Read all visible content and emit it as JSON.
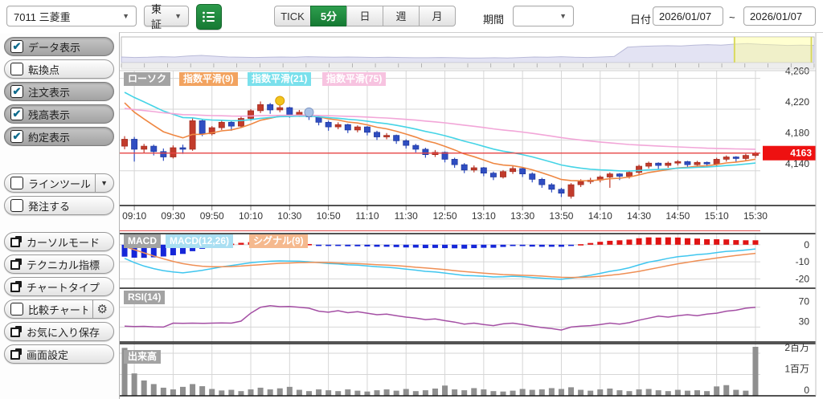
{
  "toolbar": {
    "stock_selector": "7011 三菱重",
    "exchange_selector": "東証",
    "intervals": [
      "TICK",
      "5分",
      "日",
      "週",
      "月"
    ],
    "active_interval": "5分",
    "period_label": "期間",
    "period_value": "",
    "date_label": "日付",
    "date_from": "2026/01/07",
    "date_separator": "~",
    "date_to": "2026/01/07"
  },
  "sidebar": {
    "buttons": [
      {
        "name": "sidebar-button-data-display",
        "label": "データ表示",
        "control": "checkbox",
        "checked": true
      },
      {
        "name": "sidebar-button-turning-point",
        "label": "転換点",
        "control": "checkbox",
        "checked": false
      },
      {
        "name": "sidebar-button-order-display",
        "label": "注文表示",
        "control": "checkbox",
        "checked": true
      },
      {
        "name": "sidebar-button-balance-display",
        "label": "残高表示",
        "control": "checkbox",
        "checked": true
      },
      {
        "name": "sidebar-button-execution-display",
        "label": "約定表示",
        "control": "checkbox",
        "checked": true
      },
      {
        "name": "sidebar-button-line-tool",
        "label": "ラインツール",
        "control": "checkbox",
        "checked": false,
        "gap": "a",
        "dropdown": true
      },
      {
        "name": "sidebar-button-place-order",
        "label": "発注する",
        "control": "checkbox",
        "checked": false
      },
      {
        "name": "sidebar-button-cursor-mode",
        "label": "カーソルモード",
        "control": "window",
        "gap": "b"
      },
      {
        "name": "sidebar-button-technical-indicator",
        "label": "テクニカル指標",
        "control": "window"
      },
      {
        "name": "sidebar-button-chart-type",
        "label": "チャートタイプ",
        "control": "window"
      },
      {
        "name": "sidebar-button-compare-chart",
        "label": "比較チャート",
        "control": "checkbox",
        "checked": false,
        "gear": true
      },
      {
        "name": "sidebar-button-favorite-save",
        "label": "お気に入り保存",
        "control": "window"
      },
      {
        "name": "sidebar-button-screen-settings",
        "label": "画面設定",
        "control": "window"
      }
    ]
  },
  "chart_data": {
    "type": "candlestick",
    "symbol": "7011 三菱重",
    "interval": "5分",
    "times": [
      "09:05",
      "09:10",
      "09:15",
      "09:20",
      "09:25",
      "09:30",
      "09:35",
      "09:40",
      "09:45",
      "09:50",
      "09:55",
      "10:00",
      "10:05",
      "10:10",
      "10:15",
      "10:20",
      "10:25",
      "10:30",
      "10:35",
      "10:40",
      "10:45",
      "10:50",
      "10:55",
      "11:00",
      "11:05",
      "11:10",
      "11:15",
      "11:20",
      "11:25",
      "11:30",
      "12:35",
      "12:40",
      "12:45",
      "12:50",
      "12:55",
      "13:00",
      "13:05",
      "13:10",
      "13:15",
      "13:20",
      "13:25",
      "13:30",
      "13:35",
      "13:40",
      "13:45",
      "13:50",
      "13:55",
      "14:00",
      "14:05",
      "14:10",
      "14:15",
      "14:20",
      "14:25",
      "14:30",
      "14:35",
      "14:40",
      "14:45",
      "14:50",
      "14:55",
      "15:00",
      "15:05",
      "15:10",
      "15:15",
      "15:20",
      "15:25",
      "15:30"
    ],
    "tick_indices": [
      1,
      5,
      9,
      13,
      17,
      21,
      25,
      29,
      33,
      37,
      41,
      45,
      49,
      53,
      57,
      61,
      65
    ],
    "tick_labels": [
      "09:10",
      "09:30",
      "09:50",
      "10:10",
      "10:30",
      "10:50",
      "11:10",
      "11:30",
      "12:50",
      "13:10",
      "13:30",
      "13:50",
      "14:10",
      "14:30",
      "14:50",
      "15:10",
      "15:30"
    ],
    "panels": {
      "price": {
        "legend_candle": "ローソク",
        "ylim": [
          4095,
          4270
        ],
        "gridlines": [
          4260,
          4220,
          4180,
          4140
        ],
        "grid_labels": [
          "4,260",
          "4,220",
          "4,180",
          "4,140"
        ],
        "current_price": 4163,
        "current_price_label": "4163",
        "ohlc": [
          [
            4172,
            4185,
            4168,
            4181
          ],
          [
            4181,
            4184,
            4152,
            4168
          ],
          [
            4168,
            4175,
            4163,
            4172
          ],
          [
            4172,
            4174,
            4160,
            4165
          ],
          [
            4165,
            4169,
            4153,
            4158
          ],
          [
            4158,
            4173,
            4156,
            4170
          ],
          [
            4170,
            4174,
            4162,
            4168
          ],
          [
            4168,
            4208,
            4166,
            4205
          ],
          [
            4205,
            4207,
            4185,
            4188
          ],
          [
            4188,
            4198,
            4186,
            4196
          ],
          [
            4196,
            4206,
            4193,
            4203
          ],
          [
            4203,
            4205,
            4192,
            4198
          ],
          [
            4198,
            4210,
            4196,
            4208
          ],
          [
            4208,
            4220,
            4205,
            4218
          ],
          [
            4218,
            4230,
            4215,
            4226
          ],
          [
            4226,
            4228,
            4214,
            4219
          ],
          [
            4219,
            4225,
            4216,
            4222
          ],
          [
            4222,
            4223,
            4209,
            4213
          ],
          [
            4213,
            4219,
            4210,
            4216
          ],
          [
            4216,
            4217,
            4206,
            4210
          ],
          [
            4210,
            4212,
            4199,
            4203
          ],
          [
            4203,
            4205,
            4192,
            4197
          ],
          [
            4197,
            4203,
            4194,
            4200
          ],
          [
            4200,
            4201,
            4189,
            4193
          ],
          [
            4193,
            4199,
            4190,
            4197
          ],
          [
            4197,
            4198,
            4186,
            4190
          ],
          [
            4190,
            4192,
            4180,
            4184
          ],
          [
            4184,
            4189,
            4181,
            4186
          ],
          [
            4186,
            4187,
            4175,
            4179
          ],
          [
            4179,
            4181,
            4169,
            4173
          ],
          [
            4173,
            4175,
            4164,
            4168
          ],
          [
            4168,
            4170,
            4157,
            4161
          ],
          [
            4161,
            4167,
            4158,
            4164
          ],
          [
            4164,
            4165,
            4151,
            4155
          ],
          [
            4155,
            4157,
            4144,
            4148
          ],
          [
            4148,
            4150,
            4137,
            4141
          ],
          [
            4141,
            4147,
            4138,
            4144
          ],
          [
            4144,
            4145,
            4133,
            4137
          ],
          [
            4137,
            4139,
            4128,
            4132
          ],
          [
            4132,
            4141,
            4130,
            4139
          ],
          [
            4139,
            4146,
            4136,
            4143
          ],
          [
            4143,
            4144,
            4132,
            4136
          ],
          [
            4136,
            4138,
            4125,
            4129
          ],
          [
            4129,
            4131,
            4118,
            4122
          ],
          [
            4122,
            4124,
            4112,
            4116
          ],
          [
            4116,
            4118,
            4106,
            4111
          ],
          [
            4107,
            4124,
            4104,
            4122
          ],
          [
            4122,
            4129,
            4119,
            4126
          ],
          [
            4126,
            4131,
            4123,
            4128
          ],
          [
            4128,
            4134,
            4125,
            4132
          ],
          [
            4132,
            4138,
            4118,
            4136
          ],
          [
            4136,
            4137,
            4128,
            4133
          ],
          [
            4133,
            4140,
            4130,
            4138
          ],
          [
            4138,
            4148,
            4135,
            4146
          ],
          [
            4146,
            4152,
            4143,
            4150
          ],
          [
            4150,
            4151,
            4142,
            4147
          ],
          [
            4147,
            4152,
            4144,
            4150
          ],
          [
            4150,
            4154,
            4147,
            4152
          ],
          [
            4152,
            4153,
            4144,
            4148
          ],
          [
            4148,
            4153,
            4145,
            4151
          ],
          [
            4151,
            4152,
            4145,
            4149
          ],
          [
            4149,
            4157,
            4146,
            4155
          ],
          [
            4155,
            4160,
            4152,
            4158
          ],
          [
            4158,
            4159,
            4151,
            4156
          ],
          [
            4156,
            4162,
            4153,
            4160
          ],
          [
            4160,
            4165,
            4157,
            4163
          ]
        ],
        "emas": [
          {
            "label": "指数平滑(9)",
            "period": 9,
            "seed": 4240,
            "color": "#ef8742"
          },
          {
            "label": "指数平滑(21)",
            "period": 21,
            "seed": 4248,
            "color": "#45d4e6"
          },
          {
            "label": "指数平滑(75)",
            "period": 75,
            "seed": 4222,
            "color": "#f2a6d8"
          }
        ],
        "markers": [
          {
            "name": "execution-marker-yellow",
            "index": 16,
            "price": 4231,
            "color": "#f2c41d",
            "edge": "#d89b00"
          },
          {
            "name": "execution-marker-blue",
            "index": 19,
            "price": 4216,
            "color": "#a9c0e4",
            "edge": "#7f97c4"
          }
        ]
      },
      "macd": {
        "title": "MACD",
        "macd_label": "MACD(12,26)",
        "signal_label": "シグナル(9)",
        "ylim": [
          -25.5,
          6.5
        ],
        "gridlines": [
          0,
          -10,
          -20
        ],
        "grid_labels": [
          "0",
          "-10",
          "-20"
        ],
        "macd": [
          -8,
          -10.5,
          -12.5,
          -14,
          -15.2,
          -16,
          -16.5,
          -15.8,
          -15,
          -14,
          -13,
          -12.2,
          -11.4,
          -10.6,
          -10,
          -9.7,
          -9.5,
          -9.6,
          -9.7,
          -10,
          -10.5,
          -11,
          -11.3,
          -11.8,
          -12,
          -12.4,
          -12.9,
          -13.2,
          -13.7,
          -14.3,
          -14.9,
          -15.6,
          -16,
          -16.6,
          -17.3,
          -18,
          -18.2,
          -18.5,
          -18.9,
          -18.8,
          -18.5,
          -18.7,
          -19.2,
          -19.6,
          -20,
          -20.3,
          -19.6,
          -18.8,
          -17.9,
          -16.8,
          -15.6,
          -14.7,
          -13.5,
          -11.8,
          -10.2,
          -9.2,
          -8,
          -7,
          -6.5,
          -5.8,
          -5.4,
          -4.6,
          -3.9,
          -3.6,
          -3.1,
          -2.5
        ],
        "signal": [
          -1,
          -2.9,
          -4.8,
          -6.6,
          -8.3,
          -9.8,
          -11.1,
          -12,
          -12.6,
          -12.9,
          -12.9,
          -12.8,
          -12.5,
          -12.1,
          -11.7,
          -11.3,
          -10.9,
          -10.7,
          -10.5,
          -10.4,
          -10.4,
          -10.5,
          -10.7,
          -10.9,
          -11.1,
          -11.4,
          -11.7,
          -12,
          -12.3,
          -12.7,
          -13.2,
          -13.6,
          -14.1,
          -14.6,
          -15.2,
          -15.7,
          -16.2,
          -16.7,
          -17.1,
          -17.5,
          -17.7,
          -17.9,
          -18.1,
          -18.4,
          -18.8,
          -19.1,
          -19.2,
          -19.1,
          -18.9,
          -18.5,
          -17.9,
          -17.3,
          -16.5,
          -15.6,
          -14.5,
          -13.4,
          -12.3,
          -11.2,
          -10.3,
          -9.4,
          -8.6,
          -7.8,
          -7,
          -6.3,
          -5.7,
          -5.1
        ]
      },
      "rsi": {
        "title": "RSI(14)",
        "ylim": [
          0,
          105
        ],
        "gridlines": [
          70,
          30
        ],
        "grid_labels": [
          "70",
          "30"
        ],
        "values": [
          32,
          31,
          31.5,
          30.5,
          30,
          38,
          37.5,
          38,
          37.5,
          38,
          38.5,
          38,
          42,
          58,
          70,
          73,
          71,
          71.5,
          70,
          68,
          62,
          60,
          63,
          59,
          61,
          58,
          55,
          56,
          53,
          50,
          48,
          45,
          46.5,
          43,
          40,
          36,
          38,
          35,
          33,
          36.5,
          38,
          35,
          32,
          29,
          27,
          24,
          30,
          32,
          33,
          35,
          38,
          36,
          39,
          44,
          48,
          52,
          50,
          53,
          55,
          53,
          56,
          58,
          62,
          64,
          68,
          70
        ]
      },
      "volume": {
        "title": "出来高",
        "unit": "百万",
        "ylim": [
          0,
          2.45
        ],
        "gridlines": [
          2,
          1,
          0
        ],
        "grid_labels": [
          "2百万",
          "1百万",
          "0"
        ],
        "values": [
          2.25,
          1.05,
          0.72,
          0.55,
          0.38,
          0.3,
          0.42,
          0.55,
          0.45,
          0.32,
          0.25,
          0.28,
          0.22,
          0.3,
          0.38,
          0.3,
          0.35,
          0.42,
          0.28,
          0.22,
          0.3,
          0.26,
          0.22,
          0.3,
          0.24,
          0.2,
          0.26,
          0.3,
          0.24,
          0.32,
          0.22,
          0.26,
          0.34,
          0.48,
          0.3,
          0.26,
          0.36,
          0.3,
          0.22,
          0.2,
          0.24,
          0.32,
          0.28,
          0.3,
          0.36,
          0.32,
          0.4,
          0.28,
          0.24,
          0.3,
          0.34,
          0.26,
          0.22,
          0.3,
          0.32,
          0.26,
          0.22,
          0.28,
          0.24,
          0.26,
          0.22,
          0.44,
          0.5,
          0.28,
          0.24,
          2.3
        ]
      }
    },
    "navigator": {
      "values": [
        0.22,
        0.2,
        0.21,
        0.23,
        0.22,
        0.26,
        0.28,
        0.25,
        0.22,
        0.21,
        0.2,
        0.21,
        0.22,
        0.21,
        0.23,
        0.22,
        0.21,
        0.22,
        0.21,
        0.2,
        0.21,
        0.2,
        0.19,
        0.19,
        0.2,
        0.19,
        0.18,
        0.18,
        0.19,
        0.18,
        0.2,
        0.22,
        0.21,
        0.23,
        0.21,
        0.2,
        0.22,
        0.24,
        0.6,
        0.63,
        0.65,
        0.66,
        0.65,
        0.68,
        0.7,
        0.68,
        0.72,
        0.74,
        0.71,
        0.69,
        0.67,
        0.68,
        0.67
      ],
      "selection": [
        0.885,
        0.996
      ]
    }
  },
  "colors": {
    "accent_green": "#1e8138",
    "candle_up": "#c23b2b",
    "candle_down": "#2f4ec2",
    "price_line": "#e64545",
    "price_badge": "#ee1111",
    "macd_hist_pos": "#e01313",
    "macd_hist_neg": "#1526d8",
    "macd_line": "#3fc6ef",
    "signal_line": "#ef8f55",
    "rsi_line": "#a44fa4",
    "volume_bar": "#8f8f8f",
    "grid": "#d6d6d6",
    "panel_border": "#1a1a1a",
    "nav_fill": "#e3e3f3",
    "nav_line": "#b9bad8",
    "nav_sel_fill": "rgba(255,255,150,0.45)",
    "nav_sel_edge": "#d9d95e"
  }
}
